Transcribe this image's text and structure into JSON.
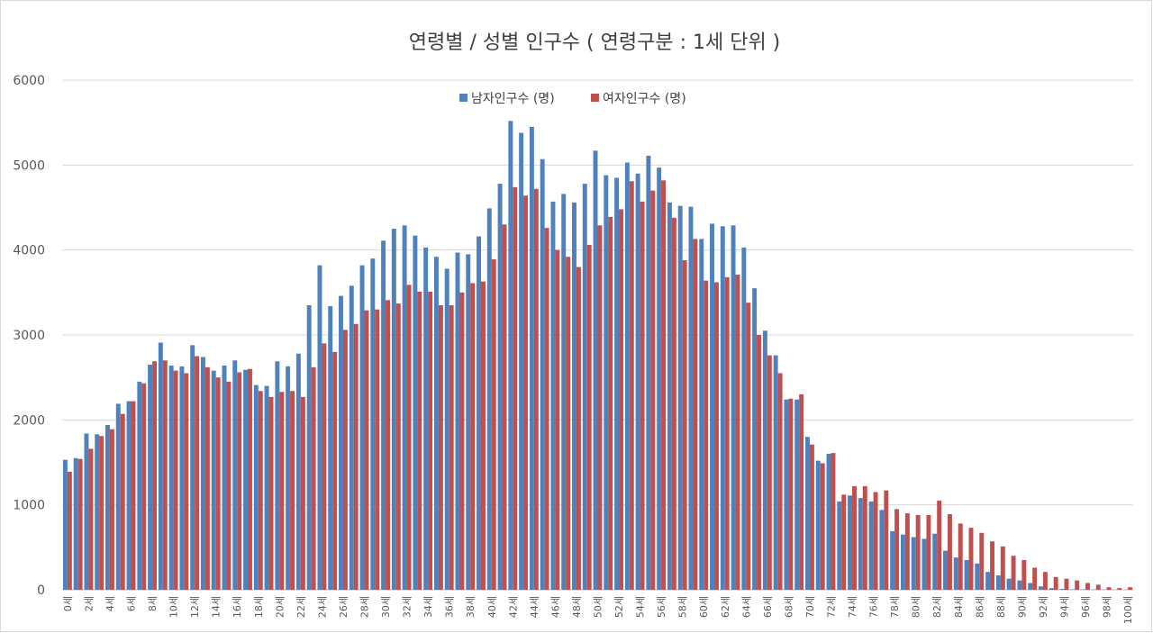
{
  "chart_data": {
    "type": "bar",
    "title": "연령별  / 성별 인구수 ( 연령구분 : 1세 단위 )",
    "xlabel": "",
    "ylabel": "",
    "ylim": [
      0,
      6000
    ],
    "yticks": [
      "0",
      "1000",
      "2000",
      "3000",
      "4000",
      "5000",
      "6000"
    ],
    "grid": true,
    "legend_position": "top-center",
    "categories": [
      "0세",
      "1세",
      "2세",
      "3세",
      "4세",
      "5세",
      "6세",
      "7세",
      "8세",
      "9세",
      "10세",
      "11세",
      "12세",
      "13세",
      "14세",
      "15세",
      "16세",
      "17세",
      "18세",
      "19세",
      "20세",
      "21세",
      "22세",
      "23세",
      "24세",
      "25세",
      "26세",
      "27세",
      "28세",
      "29세",
      "30세",
      "31세",
      "32세",
      "33세",
      "34세",
      "35세",
      "36세",
      "37세",
      "38세",
      "39세",
      "40세",
      "41세",
      "42세",
      "43세",
      "44세",
      "45세",
      "46세",
      "47세",
      "48세",
      "49세",
      "50세",
      "51세",
      "52세",
      "53세",
      "54세",
      "55세",
      "56세",
      "57세",
      "58세",
      "59세",
      "60세",
      "61세",
      "62세",
      "63세",
      "64세",
      "65세",
      "66세",
      "67세",
      "68세",
      "69세",
      "70세",
      "71세",
      "72세",
      "73세",
      "74세",
      "75세",
      "76세",
      "77세",
      "78세",
      "79세",
      "80세",
      "81세",
      "82세",
      "83세",
      "84세",
      "85세",
      "86세",
      "87세",
      "88세",
      "89세",
      "90세",
      "91세",
      "92세",
      "93세",
      "94세",
      "95세",
      "96세",
      "97세",
      "98세",
      "99세",
      "100세"
    ],
    "series": [
      {
        "name": "남자인구수 (명)",
        "color": "#4f81bd",
        "values": [
          1530,
          1550,
          1840,
          1830,
          1940,
          2190,
          2220,
          2450,
          2650,
          2910,
          2640,
          2630,
          2880,
          2740,
          2580,
          2640,
          2700,
          2590,
          2410,
          2400,
          2690,
          2630,
          2780,
          3350,
          3820,
          3340,
          3460,
          3580,
          3820,
          3900,
          4110,
          4250,
          4290,
          4170,
          4030,
          3920,
          3780,
          3970,
          3950,
          4160,
          4490,
          4780,
          5520,
          5380,
          5450,
          5070,
          4570,
          4660,
          4560,
          4780,
          5170,
          4880,
          4850,
          5030,
          4900,
          5110,
          4970,
          4560,
          4520,
          4510,
          4130,
          4310,
          4280,
          4290,
          4030,
          3550,
          3050,
          2760,
          2240,
          2240,
          1800,
          1520,
          1600,
          1040,
          1110,
          1080,
          1040,
          940,
          690,
          650,
          620,
          600,
          660,
          460,
          380,
          350,
          310,
          210,
          170,
          130,
          110,
          80,
          40,
          20,
          10,
          5,
          5,
          3,
          2,
          1,
          1
        ]
      },
      {
        "name": "여자인구수 (명)",
        "color": "#c0504d",
        "values": [
          1390,
          1540,
          1660,
          1810,
          1890,
          2070,
          2220,
          2430,
          2690,
          2700,
          2580,
          2550,
          2750,
          2620,
          2500,
          2450,
          2560,
          2600,
          2340,
          2270,
          2330,
          2340,
          2270,
          2620,
          2900,
          2800,
          3060,
          3130,
          3290,
          3300,
          3410,
          3370,
          3590,
          3510,
          3510,
          3350,
          3350,
          3500,
          3610,
          3630,
          3890,
          4300,
          4740,
          4640,
          4720,
          4260,
          4000,
          3920,
          3800,
          4060,
          4290,
          4390,
          4480,
          4810,
          4570,
          4700,
          4820,
          4380,
          3880,
          4130,
          3640,
          3620,
          3680,
          3710,
          3380,
          3000,
          2760,
          2550,
          2250,
          2300,
          1710,
          1490,
          1610,
          1120,
          1220,
          1220,
          1150,
          1170,
          950,
          900,
          880,
          880,
          1050,
          890,
          780,
          730,
          670,
          570,
          510,
          400,
          350,
          260,
          210,
          150,
          130,
          110,
          80,
          60,
          30,
          20,
          30
        ]
      }
    ]
  }
}
